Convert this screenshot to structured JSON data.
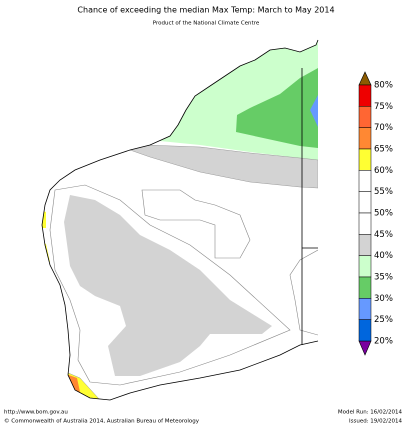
{
  "header": {
    "title": "Chance of exceeding the median Max Temp: March to May 2014",
    "subtitle": "Product of the National Climate Centre"
  },
  "legend": {
    "labels": [
      "80%",
      "75%",
      "70%",
      "65%",
      "60%",
      "55%",
      "50%",
      "45%",
      "40%",
      "35%",
      "30%",
      "25%",
      "20%"
    ]
  },
  "footer": {
    "url": "http://www.bom.gov.au",
    "copyright": "©  Commonwealth of Australia 2014, Australian Bureau of Meteorology",
    "model_run": "Model Run: 16/02/2014",
    "issued": "Issued: 19/02/2014"
  }
}
